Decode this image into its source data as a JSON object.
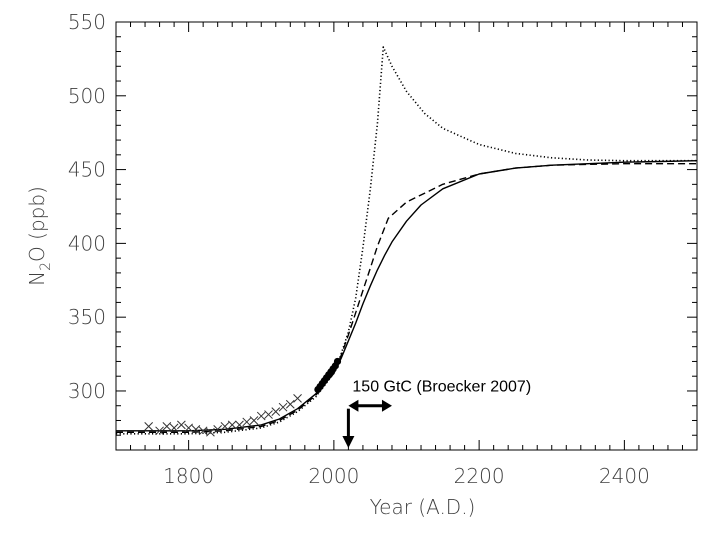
{
  "chart_data": {
    "type": "line",
    "title": "",
    "xlabel": "Year  (A.D.)",
    "ylabel": "N",
    "ylabel_sub": "2",
    "ylabel_rest": "O  (ppb)",
    "xlim": [
      1700,
      2500
    ],
    "ylim": [
      260,
      550
    ],
    "xticks": [
      1800,
      2000,
      2200,
      2400
    ],
    "yticks": [
      300,
      350,
      400,
      450,
      500,
      550
    ],
    "grid": false,
    "series": [
      {
        "style": "solid",
        "x": [
          1700,
          1800,
          1850,
          1900,
          1925,
          1950,
          1975,
          2000,
          2010,
          2020,
          2030,
          2040,
          2050,
          2060,
          2070,
          2080,
          2100,
          2120,
          2150,
          2200,
          2250,
          2300,
          2350,
          2400,
          2450,
          2500
        ],
        "y": [
          273,
          273,
          274,
          277,
          281,
          288,
          298,
          312,
          322,
          334,
          346,
          359,
          371,
          382,
          392,
          401,
          415,
          426,
          437,
          447,
          451,
          453,
          454,
          455,
          455.5,
          456
        ]
      },
      {
        "style": "dashed",
        "x": [
          1700,
          1800,
          1850,
          1900,
          1925,
          1950,
          1975,
          2000,
          2010,
          2020,
          2030,
          2040,
          2050,
          2060,
          2075,
          2100,
          2150,
          2200,
          2250,
          2300,
          2350,
          2400,
          2450,
          2500
        ],
        "y": [
          272,
          272,
          273,
          276,
          280,
          287,
          297,
          312,
          324,
          338,
          353,
          368,
          383,
          398,
          417,
          428,
          440,
          447,
          451,
          453,
          453.5,
          454,
          454,
          454
        ]
      },
      {
        "style": "dotted",
        "x": [
          1700,
          1800,
          1850,
          1900,
          1925,
          1950,
          1975,
          2000,
          2010,
          2020,
          2030,
          2040,
          2050,
          2060,
          2068,
          2080,
          2100,
          2125,
          2150,
          2200,
          2250,
          2300,
          2350,
          2400,
          2450,
          2500
        ],
        "y": [
          271,
          271,
          272,
          275,
          279,
          286,
          296,
          312,
          325,
          340,
          363,
          397,
          436,
          481,
          533,
          520,
          503,
          488,
          478,
          467,
          461,
          458,
          456.5,
          456,
          456,
          456
        ]
      }
    ],
    "observations": {
      "marker": "x",
      "x": [
        1745,
        1760,
        1770,
        1780,
        1790,
        1800,
        1810,
        1820,
        1830,
        1840,
        1850,
        1860,
        1870,
        1880,
        1890,
        1900,
        1910,
        1920,
        1930,
        1940,
        1950
      ],
      "y": [
        276,
        273,
        276,
        275,
        277,
        275,
        274,
        273,
        272,
        274,
        276,
        277,
        277,
        279,
        280,
        283,
        284,
        286,
        289,
        291,
        295
      ]
    },
    "recent_measurements": {
      "x": [
        1978,
        1981,
        1984,
        1987,
        1990,
        1993,
        1996,
        1999,
        2002,
        2005
      ],
      "y": [
        301,
        303,
        305,
        307,
        309,
        311,
        313,
        315,
        317,
        320
      ]
    },
    "annotations": [
      {
        "text": "150 GtC (Broecker 2007)",
        "type": "double-arrow",
        "x_from": 2020,
        "x_to": 2080,
        "y": 290
      },
      {
        "type": "down-arrow",
        "x": 2020,
        "y_from": 288,
        "y_to": 262
      }
    ]
  }
}
